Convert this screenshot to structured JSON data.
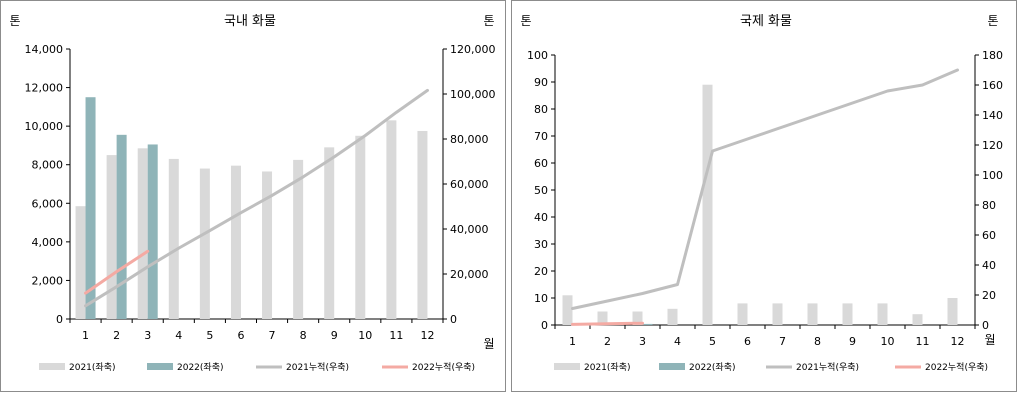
{
  "chart_data": [
    {
      "type": "bar",
      "title": "국내 화물",
      "ylabel": "톤",
      "y2label": "톤",
      "xunit": "월",
      "categories": [
        "1",
        "2",
        "3",
        "4",
        "5",
        "6",
        "7",
        "8",
        "9",
        "10",
        "11",
        "12"
      ],
      "ylim": [
        0,
        14000
      ],
      "yticks": [
        0,
        2000,
        4000,
        6000,
        8000,
        10000,
        12000,
        14000
      ],
      "ytick_labels": [
        "0",
        "2,000",
        "4,000",
        "6,000",
        "8,000",
        "10,000",
        "12,000",
        "14,000"
      ],
      "y2lim": [
        0,
        120000
      ],
      "y2ticks": [
        0,
        20000,
        40000,
        60000,
        80000,
        100000,
        120000
      ],
      "y2tick_labels": [
        "0",
        "20,000",
        "40,000",
        "60,000",
        "80,000",
        "100,000",
        "120,000"
      ],
      "bar_series": [
        {
          "name": "2021(좌축)",
          "color": "#d9d9d9",
          "values": [
            5850,
            8500,
            8850,
            8300,
            7800,
            7950,
            7650,
            8250,
            8900,
            9500,
            10300,
            9750
          ]
        },
        {
          "name": "2022(좌축)",
          "color": "#8fb4b8",
          "values": [
            11500,
            9550,
            9050,
            null,
            null,
            null,
            null,
            null,
            null,
            null,
            null,
            null
          ]
        }
      ],
      "line_series": [
        {
          "name": "2021누적(우축)",
          "color": "#bfbfbf",
          "values": [
            5850,
            14350,
            23200,
            31500,
            39300,
            47250,
            54900,
            63150,
            72050,
            81550,
            91850,
            101600
          ]
        },
        {
          "name": "2022누적(우축)",
          "color": "#f4aaa3",
          "values": [
            11500,
            21050,
            30100,
            null,
            null,
            null,
            null,
            null,
            null,
            null,
            null,
            null
          ]
        }
      ],
      "legend_position": "bottom"
    },
    {
      "type": "bar",
      "title": "국제 화물",
      "ylabel": "톤",
      "y2label": "톤",
      "xunit": "월",
      "categories": [
        "1",
        "2",
        "3",
        "4",
        "5",
        "6",
        "7",
        "8",
        "9",
        "10",
        "11",
        "12"
      ],
      "ylim": [
        0,
        100
      ],
      "yticks": [
        0,
        10,
        20,
        30,
        40,
        50,
        60,
        70,
        80,
        90,
        100
      ],
      "ytick_labels": [
        "0",
        "10",
        "20",
        "30",
        "40",
        "50",
        "60",
        "70",
        "80",
        "90",
        "100"
      ],
      "y2lim": [
        0,
        180
      ],
      "y2ticks": [
        0,
        20,
        40,
        60,
        80,
        100,
        120,
        140,
        160,
        180
      ],
      "y2tick_labels": [
        "0",
        "20",
        "40",
        "60",
        "80",
        "100",
        "120",
        "140",
        "160",
        "180"
      ],
      "bar_series": [
        {
          "name": "2021(좌축)",
          "color": "#d9d9d9",
          "values": [
            11,
            5,
            5,
            6,
            89,
            8,
            8,
            8,
            8,
            8,
            4,
            10
          ]
        },
        {
          "name": "2022(좌축)",
          "color": "#8fb4b8",
          "values": [
            0.4,
            0.4,
            0.4,
            null,
            null,
            null,
            null,
            null,
            null,
            null,
            null,
            null
          ]
        }
      ],
      "line_series": [
        {
          "name": "2021누적(우축)",
          "color": "#bfbfbf",
          "values": [
            11,
            16,
            21,
            27,
            116,
            124,
            132,
            140,
            148,
            156,
            160,
            170
          ]
        },
        {
          "name": "2022누적(우축)",
          "color": "#f4aaa3",
          "values": [
            0.4,
            0.8,
            1.2,
            null,
            null,
            null,
            null,
            null,
            null,
            null,
            null,
            null
          ]
        }
      ],
      "legend_position": "bottom"
    }
  ]
}
